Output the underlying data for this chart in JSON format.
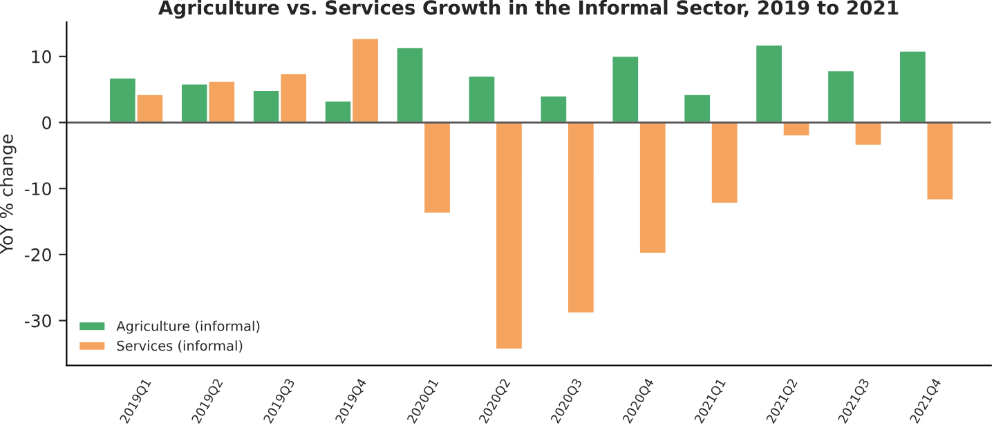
{
  "chart_data": {
    "type": "bar",
    "title": "Agriculture vs. Services Growth in the Informal Sector, 2019 to 2021",
    "ylabel": "YoY % change",
    "categories": [
      "2019Q1",
      "2019Q2",
      "2019Q3",
      "2019Q4",
      "2020Q1",
      "2020Q2",
      "2020Q3",
      "2020Q4",
      "2021Q1",
      "2021Q2",
      "2021Q3",
      "2021Q4"
    ],
    "series": [
      {
        "name": "Agriculture (informal)",
        "color": "#4aac6b",
        "values": [
          6.8,
          5.9,
          4.9,
          3.3,
          11.4,
          7.1,
          4.1,
          10.1,
          4.3,
          11.8,
          7.9,
          10.9
        ]
      },
      {
        "name": "Services (informal)",
        "color": "#f4a45e",
        "values": [
          4.3,
          6.3,
          7.5,
          12.8,
          -13.8,
          -34.4,
          -28.9,
          -19.9,
          -12.3,
          -2.1,
          -3.5,
          -11.8
        ]
      }
    ],
    "ylim": [
      -36.8,
      15.2
    ],
    "yticks": [
      -30,
      -20,
      -10,
      0,
      10
    ],
    "ref_lines": [
      {
        "axis": "y",
        "value": 0,
        "color": "#555555"
      }
    ],
    "legend": "bottom left",
    "grid": false
  }
}
